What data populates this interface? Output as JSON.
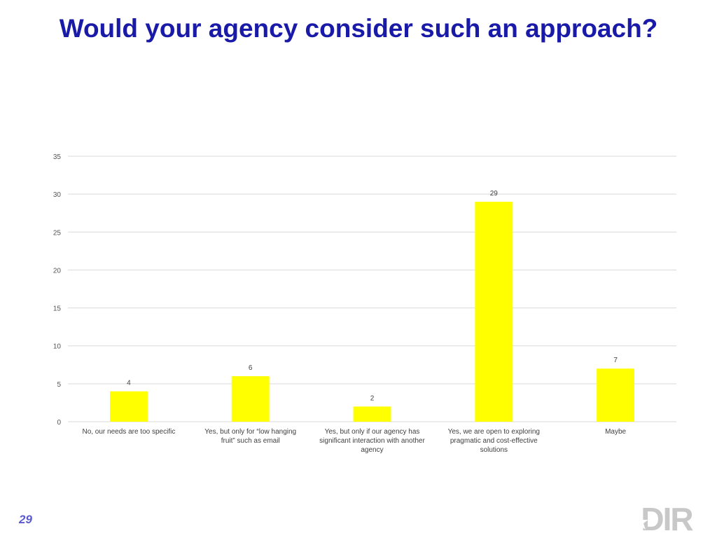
{
  "slide": {
    "title": "Would your agency consider such an approach?",
    "page_number": "29",
    "logo_text": "DIR"
  },
  "colors": {
    "title": "#1a1aa8",
    "bar": "#ffff00",
    "grid": "#d9d9d9",
    "page_number": "#5a5ad0",
    "logo": "#c8c8c8"
  },
  "chart_data": {
    "type": "bar",
    "categories": [
      [
        "No, our needs are too specific"
      ],
      [
        "Yes, but only for “low hanging",
        "fruit” such as email"
      ],
      [
        "Yes, but only if our agency has",
        "significant interaction with another",
        "agency"
      ],
      [
        "Yes, we are open to exploring",
        "pragmatic and cost-effective",
        "solutions"
      ],
      [
        "Maybe"
      ]
    ],
    "values": [
      4,
      6,
      2,
      29,
      7
    ],
    "ylim": [
      0,
      35
    ],
    "yticks": [
      0,
      5,
      10,
      15,
      20,
      25,
      30,
      35
    ],
    "grid": true,
    "legend": "none",
    "data_labels": true
  }
}
